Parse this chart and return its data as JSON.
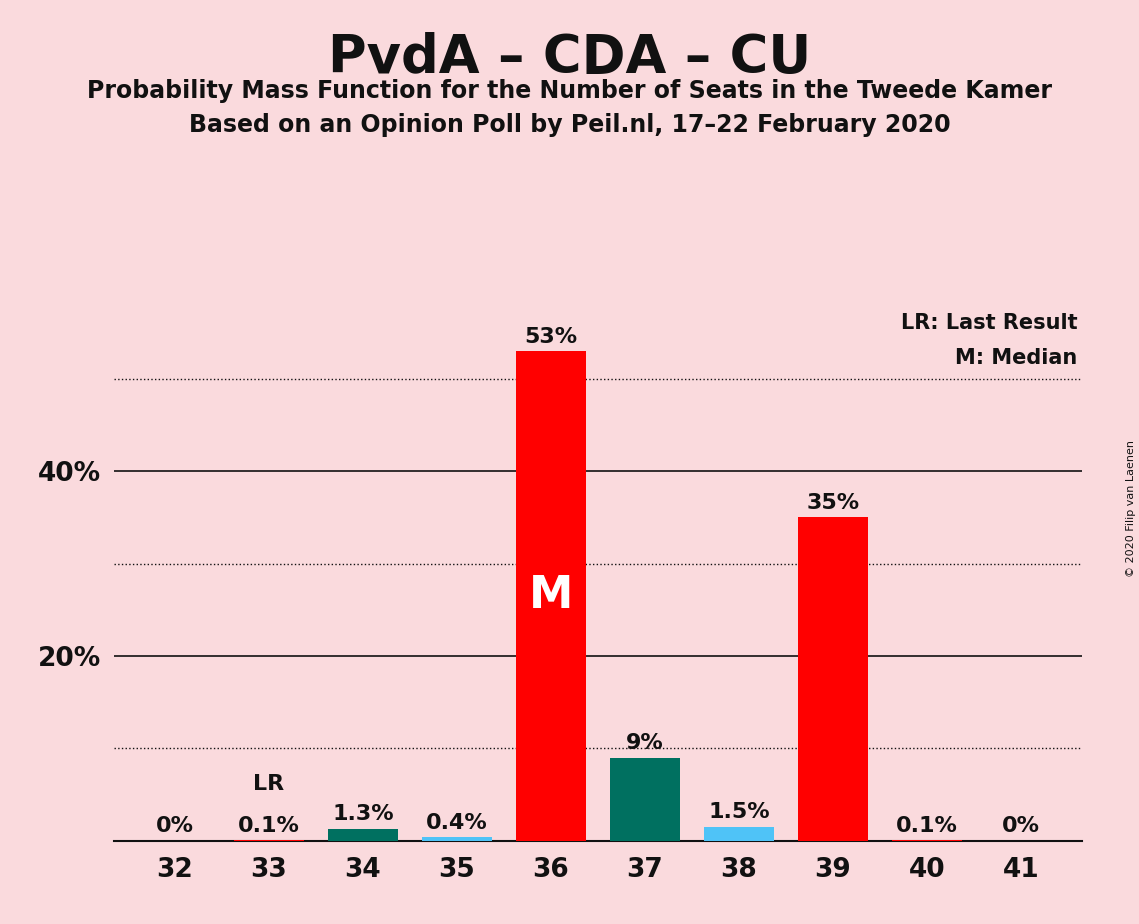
{
  "title": "PvdA – CDA – CU",
  "subtitle1": "Probability Mass Function for the Number of Seats in the Tweede Kamer",
  "subtitle2": "Based on an Opinion Poll by Peil.nl, 17–22 February 2020",
  "copyright": "© 2020 Filip van Laenen",
  "categories": [
    32,
    33,
    34,
    35,
    36,
    37,
    38,
    39,
    40,
    41
  ],
  "values": [
    0.0,
    0.1,
    1.3,
    0.4,
    53.0,
    9.0,
    1.5,
    35.0,
    0.1,
    0.0
  ],
  "labels": [
    "0%",
    "0.1%",
    "1.3%",
    "0.4%",
    "53%",
    "9%",
    "1.5%",
    "35%",
    "0.1%",
    "0%"
  ],
  "bar_colors": [
    "#FF0000",
    "#FF0000",
    "#007060",
    "#4FC3F7",
    "#FF0000",
    "#007060",
    "#4FC3F7",
    "#FF0000",
    "#FF0000",
    "#FF0000"
  ],
  "median_bar": 36,
  "lr_bar": 33,
  "median_label": "M",
  "lr_label": "LR",
  "legend_lr": "LR: Last Result",
  "legend_m": "M: Median",
  "background_color": "#FADADD",
  "ylim": [
    0,
    58
  ],
  "dotted_yticks": [
    10,
    30,
    50
  ],
  "solid_yticks": [
    20,
    40
  ],
  "ytick_positions": [
    10,
    20,
    30,
    40,
    50
  ],
  "ytick_labels": [
    "",
    "20%",
    "",
    "40%",
    ""
  ]
}
